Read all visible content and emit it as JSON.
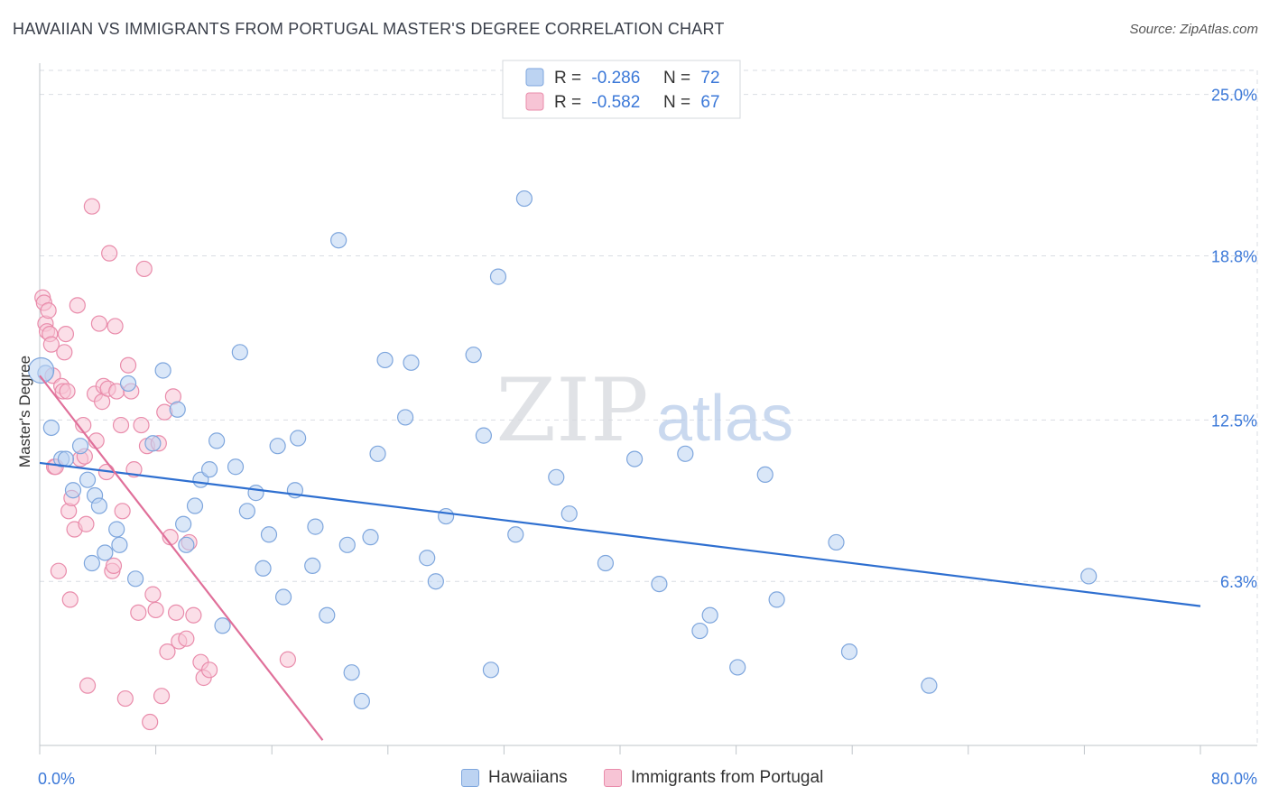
{
  "chart_data": {
    "type": "scatter",
    "title": "HAWAIIAN VS IMMIGRANTS FROM PORTUGAL MASTER'S DEGREE CORRELATION CHART",
    "source": "Source: ZipAtlas.com",
    "ylabel": "Master's Degree",
    "xlabel": "",
    "xlim": [
      0,
      80
    ],
    "ylim": [
      0,
      26.2
    ],
    "x_tick_labels": {
      "left": "0.0%",
      "right": "80.0%"
    },
    "y_ticks": [
      {
        "value": 6.3,
        "label": "6.3%"
      },
      {
        "value": 12.5,
        "label": "12.5%"
      },
      {
        "value": 18.8,
        "label": "18.8%"
      },
      {
        "value": 25.0,
        "label": "25.0%"
      }
    ],
    "watermark": {
      "zip": "ZIP",
      "atlas": "atlas"
    },
    "colors": {
      "blue_fill": "#bcd3f2",
      "blue_stroke": "#7ea6dd",
      "blue_line": "#2e6fd0",
      "pink_fill": "#f7c4d5",
      "pink_stroke": "#e98cab",
      "pink_line": "#e0709a",
      "value_text": "#3b78d8",
      "grid": "#d9dde3"
    },
    "legend": [
      {
        "r_label": "R =",
        "r_value": "-0.286",
        "n_label": "N =",
        "n_value": "72"
      },
      {
        "r_label": "R =",
        "r_value": "-0.582",
        "n_label": "N =",
        "n_value": "67"
      }
    ],
    "series": [
      {
        "name": "Hawaiians",
        "trend": {
          "x0": 0,
          "y0": 10.85,
          "x1": 80,
          "y1": 5.35
        },
        "points": [
          [
            0.4,
            14.3
          ],
          [
            0.8,
            12.2
          ],
          [
            1.5,
            11.0
          ],
          [
            1.8,
            11.0
          ],
          [
            2.3,
            9.8
          ],
          [
            2.8,
            11.5
          ],
          [
            3.3,
            10.2
          ],
          [
            3.8,
            9.6
          ],
          [
            3.6,
            7.0
          ],
          [
            4.1,
            9.2
          ],
          [
            4.5,
            7.4
          ],
          [
            5.3,
            8.3
          ],
          [
            5.5,
            7.7
          ],
          [
            6.1,
            13.9
          ],
          [
            6.6,
            6.4
          ],
          [
            7.8,
            11.6
          ],
          [
            8.5,
            14.4
          ],
          [
            9.5,
            12.9
          ],
          [
            9.9,
            8.5
          ],
          [
            10.1,
            7.7
          ],
          [
            10.7,
            9.2
          ],
          [
            11.1,
            10.2
          ],
          [
            11.7,
            10.6
          ],
          [
            12.2,
            11.7
          ],
          [
            12.6,
            4.6
          ],
          [
            13.5,
            10.7
          ],
          [
            13.8,
            15.1
          ],
          [
            14.3,
            9.0
          ],
          [
            14.9,
            9.7
          ],
          [
            15.4,
            6.8
          ],
          [
            15.8,
            8.1
          ],
          [
            16.4,
            11.5
          ],
          [
            16.8,
            5.7
          ],
          [
            17.6,
            9.8
          ],
          [
            17.8,
            11.8
          ],
          [
            18.8,
            6.9
          ],
          [
            19.0,
            8.4
          ],
          [
            19.8,
            5.0
          ],
          [
            20.6,
            19.4
          ],
          [
            21.2,
            7.7
          ],
          [
            21.5,
            2.8
          ],
          [
            22.2,
            1.7
          ],
          [
            22.8,
            8.0
          ],
          [
            23.3,
            11.2
          ],
          [
            23.8,
            14.8
          ],
          [
            25.2,
            12.6
          ],
          [
            25.6,
            14.7
          ],
          [
            26.7,
            7.2
          ],
          [
            27.3,
            6.3
          ],
          [
            28.0,
            8.8
          ],
          [
            29.9,
            15.0
          ],
          [
            30.6,
            11.9
          ],
          [
            31.1,
            2.9
          ],
          [
            31.6,
            18.0
          ],
          [
            32.8,
            8.1
          ],
          [
            33.4,
            21.0
          ],
          [
            35.6,
            10.3
          ],
          [
            36.5,
            8.9
          ],
          [
            39.0,
            7.0
          ],
          [
            41.0,
            11.0
          ],
          [
            42.7,
            6.2
          ],
          [
            44.5,
            11.2
          ],
          [
            45.5,
            4.4
          ],
          [
            46.2,
            5.0
          ],
          [
            48.1,
            3.0
          ],
          [
            50.0,
            10.4
          ],
          [
            50.8,
            5.6
          ],
          [
            54.9,
            7.8
          ],
          [
            55.8,
            3.6
          ],
          [
            61.3,
            2.3
          ],
          [
            72.3,
            6.5
          ],
          [
            0.1,
            14.4
          ]
        ]
      },
      {
        "name": "Immigrants from Portugal",
        "trend": {
          "x0": 0,
          "y0": 14.2,
          "x1": 19.5,
          "y1": 0.2
        },
        "points": [
          [
            0.2,
            17.2
          ],
          [
            0.3,
            17.0
          ],
          [
            0.4,
            16.2
          ],
          [
            0.5,
            15.9
          ],
          [
            0.6,
            16.7
          ],
          [
            0.7,
            15.8
          ],
          [
            0.8,
            15.4
          ],
          [
            0.9,
            14.2
          ],
          [
            1.0,
            10.7
          ],
          [
            1.1,
            10.7
          ],
          [
            1.3,
            6.7
          ],
          [
            1.5,
            13.8
          ],
          [
            1.6,
            13.6
          ],
          [
            1.7,
            15.1
          ],
          [
            1.8,
            15.8
          ],
          [
            1.9,
            13.6
          ],
          [
            2.0,
            9.0
          ],
          [
            2.1,
            5.6
          ],
          [
            2.2,
            9.5
          ],
          [
            2.4,
            8.3
          ],
          [
            2.6,
            16.9
          ],
          [
            2.8,
            11.0
          ],
          [
            3.0,
            12.3
          ],
          [
            3.1,
            11.1
          ],
          [
            3.2,
            8.5
          ],
          [
            3.3,
            2.3
          ],
          [
            3.6,
            20.7
          ],
          [
            3.8,
            13.5
          ],
          [
            3.9,
            11.7
          ],
          [
            4.1,
            16.2
          ],
          [
            4.3,
            13.2
          ],
          [
            4.4,
            13.8
          ],
          [
            4.6,
            10.5
          ],
          [
            4.7,
            13.7
          ],
          [
            4.8,
            18.9
          ],
          [
            5.0,
            6.7
          ],
          [
            5.1,
            6.9
          ],
          [
            5.2,
            16.1
          ],
          [
            5.3,
            13.6
          ],
          [
            5.6,
            12.3
          ],
          [
            5.7,
            9.0
          ],
          [
            5.9,
            1.8
          ],
          [
            6.1,
            14.6
          ],
          [
            6.3,
            13.6
          ],
          [
            6.5,
            10.6
          ],
          [
            6.8,
            5.1
          ],
          [
            7.0,
            12.3
          ],
          [
            7.2,
            18.3
          ],
          [
            7.4,
            11.5
          ],
          [
            7.6,
            0.9
          ],
          [
            7.8,
            5.8
          ],
          [
            8.0,
            5.2
          ],
          [
            8.2,
            11.6
          ],
          [
            8.4,
            1.9
          ],
          [
            8.6,
            12.8
          ],
          [
            8.8,
            3.6
          ],
          [
            9.0,
            8.0
          ],
          [
            9.2,
            13.4
          ],
          [
            9.4,
            5.1
          ],
          [
            9.6,
            4.0
          ],
          [
            10.1,
            4.1
          ],
          [
            10.3,
            7.8
          ],
          [
            10.6,
            5.0
          ],
          [
            11.1,
            3.2
          ],
          [
            11.3,
            2.6
          ],
          [
            11.7,
            2.9
          ],
          [
            17.1,
            3.3
          ]
        ]
      }
    ]
  }
}
